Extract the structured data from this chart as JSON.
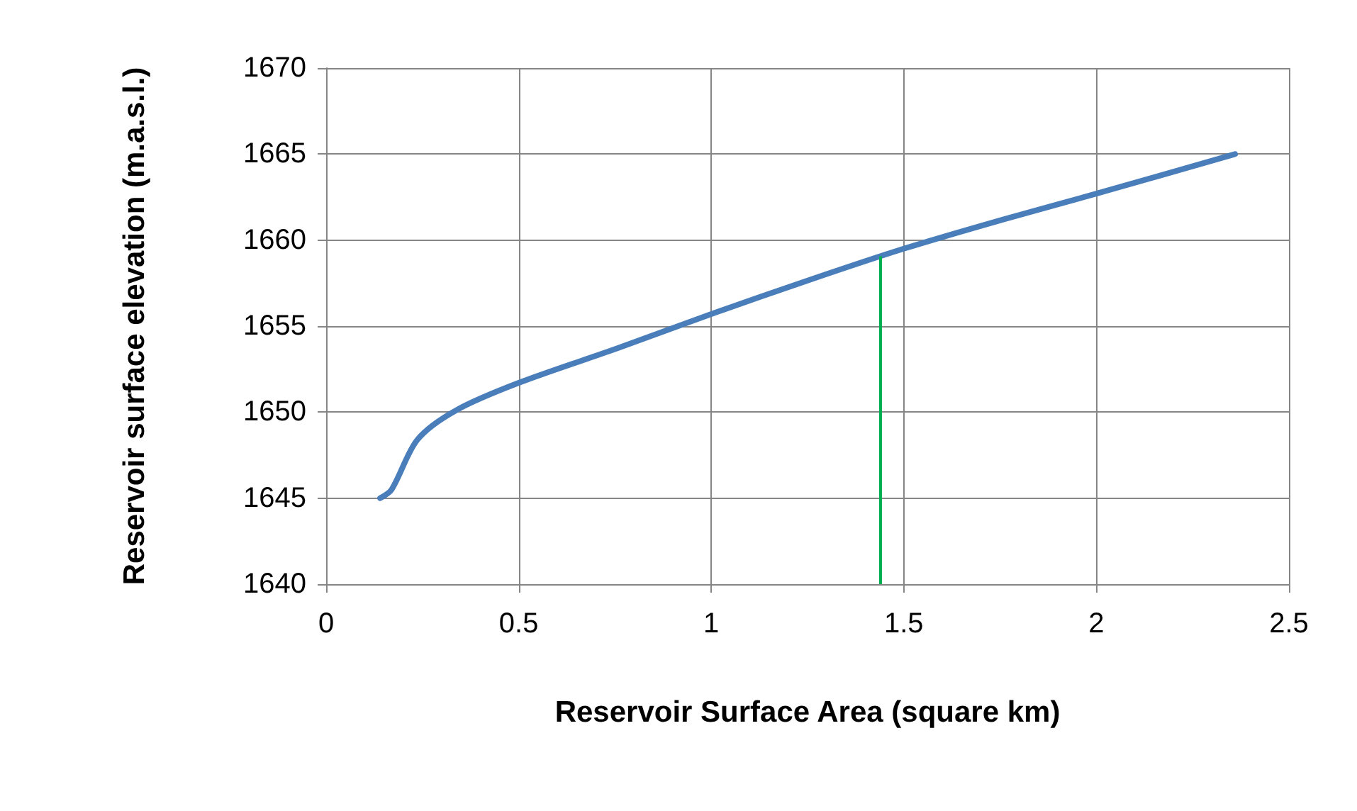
{
  "chart_data": {
    "type": "line",
    "xlabel": "Reservoir Surface Area (square km)",
    "ylabel": "Reservoir surface elevation (m.a.s.l.)",
    "x": [
      0.14,
      0.17,
      0.237,
      0.337,
      0.5,
      0.755,
      1.0,
      1.257,
      1.5,
      1.758,
      2.0,
      2.36
    ],
    "series": [
      {
        "color": "#4a7ebb",
        "values": [
          1645,
          1645.5,
          1648.4,
          1650.1,
          1651.7,
          1653.7,
          1655.7,
          1657.7,
          1659.5,
          1661.2,
          1662.7,
          1665
        ]
      }
    ],
    "xlim": [
      0,
      2.5
    ],
    "xticks": [
      0,
      0.5,
      1,
      1.5,
      2,
      2.5
    ],
    "ylim": [
      1640,
      1670
    ],
    "yticks": [
      1640,
      1645,
      1650,
      1655,
      1660,
      1665,
      1670
    ],
    "grid": true,
    "marker": "none",
    "line_style": "solid",
    "ref_lines": [
      {
        "axis": "x",
        "value": 1.44,
        "color": "#00b050"
      }
    ]
  }
}
